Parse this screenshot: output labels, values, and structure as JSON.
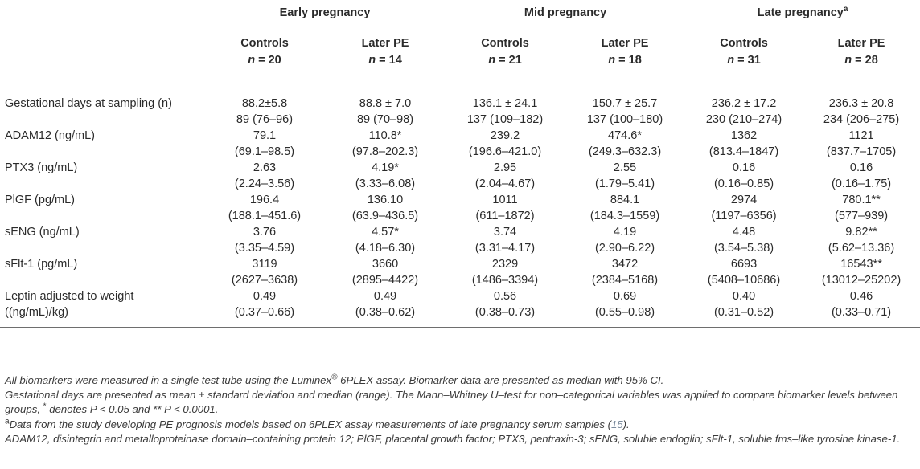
{
  "groups": [
    {
      "label": "Early pregnancy",
      "sup": ""
    },
    {
      "label": "Mid pregnancy",
      "sup": ""
    },
    {
      "label": "Late pregnancy",
      "sup": "a"
    }
  ],
  "subheaders": [
    {
      "name": "Controls",
      "n": "= 20"
    },
    {
      "name": "Later PE",
      "n": "= 14"
    },
    {
      "name": "Controls",
      "n": "= 21"
    },
    {
      "name": "Later PE",
      "n": "= 18"
    },
    {
      "name": "Controls",
      "n": "= 31"
    },
    {
      "name": "Later PE",
      "n": "= 28"
    }
  ],
  "n_symbol": "n",
  "rows": [
    {
      "label": "Gestational days at sampling (n)",
      "cells": [
        [
          "88.2±5.8",
          "89 (76–96)"
        ],
        [
          "88.8 ± 7.0",
          "89 (70–98)"
        ],
        [
          "136.1 ± 24.1",
          "137 (109–182)"
        ],
        [
          "150.7 ± 25.7",
          "137 (100–180)"
        ],
        [
          "236.2 ± 17.2",
          "230 (210–274)"
        ],
        [
          "236.3 ± 20.8",
          "234 (206–275)"
        ]
      ]
    },
    {
      "label": "ADAM12 (ng/mL)",
      "cells": [
        [
          "79.1",
          "(69.1–98.5)"
        ],
        [
          "110.8*",
          "(97.8–202.3)"
        ],
        [
          "239.2",
          "(196.6–421.0)"
        ],
        [
          "474.6*",
          "(249.3–632.3)"
        ],
        [
          "1362",
          "(813.4–1847)"
        ],
        [
          "1121",
          "(837.7–1705)"
        ]
      ]
    },
    {
      "label": "PTX3 (ng/mL)",
      "cells": [
        [
          "2.63",
          "(2.24–3.56)"
        ],
        [
          "4.19*",
          "(3.33–6.08)"
        ],
        [
          "2.95",
          "(2.04–4.67)"
        ],
        [
          "2.55",
          "(1.79–5.41)"
        ],
        [
          "0.16",
          "(0.16–0.85)"
        ],
        [
          "0.16",
          "(0.16–1.75)"
        ]
      ]
    },
    {
      "label": "PlGF (pg/mL)",
      "cells": [
        [
          "196.4",
          "(188.1–451.6)"
        ],
        [
          "136.10",
          "(63.9–436.5)"
        ],
        [
          "1011",
          "(611–1872)"
        ],
        [
          "884.1",
          "(184.3–1559)"
        ],
        [
          "2974",
          "(1197–6356)"
        ],
        [
          "780.1**",
          "(577–939)"
        ]
      ]
    },
    {
      "label": "sENG (ng/mL)",
      "cells": [
        [
          "3.76",
          "(3.35–4.59)"
        ],
        [
          "4.57*",
          "(4.18–6.30)"
        ],
        [
          "3.74",
          "(3.31–4.17)"
        ],
        [
          "4.19",
          "(2.90–6.22)"
        ],
        [
          "4.48",
          "(3.54–5.38)"
        ],
        [
          "9.82**",
          "(5.62–13.36)"
        ]
      ]
    },
    {
      "label": "sFlt-1 (pg/mL)",
      "cells": [
        [
          "3119",
          "(2627–3638)"
        ],
        [
          "3660",
          "(2895–4422)"
        ],
        [
          "2329",
          "(1486–3394)"
        ],
        [
          "3472",
          "(2384–5168)"
        ],
        [
          "6693",
          "(5408–10686)"
        ],
        [
          "16543**",
          "(13012–25202)"
        ]
      ]
    },
    {
      "label": "Leptin adjusted to weight",
      "label2": "((ng/mL)/kg)",
      "cells": [
        [
          "0.49",
          "(0.37–0.66)"
        ],
        [
          "0.49",
          "(0.38–0.62)"
        ],
        [
          "0.56",
          "(0.38–0.73)"
        ],
        [
          "0.69",
          "(0.55–0.98)"
        ],
        [
          "0.40",
          "(0.31–0.52)"
        ],
        [
          "0.46",
          "(0.33–0.71)"
        ]
      ]
    }
  ],
  "notes": {
    "line1_a": "All biomarkers were measured in a single test tube using the Luminex",
    "line1_reg": "®",
    "line1_b": " 6PLEX assay. Biomarker data are presented as median with 95% CI.",
    "line2_a": "Gestational days are presented as mean ± standard deviation and median (range). The Mann–Whitney U–test for non–categorical variables was applied to compare biomarker levels between groups, ",
    "line2_star": "*",
    "line2_b": " denotes P < 0.05 and ** P < 0.0001.",
    "line3_sup": "a",
    "line3_a": "Data from the study developing PE prognosis models based on 6PLEX assay measurements of late pregnancy serum samples (",
    "line3_ref": "15",
    "line3_b": ").",
    "line4": "ADAM12, disintegrin and metalloproteinase domain–containing protein 12; PlGF, placental growth factor; PTX3, pentraxin-3; sENG, soluble endoglin; sFlt-1, soluble fms–like tyrosine kinase-1."
  },
  "colors": {
    "text": "#2b2b2b",
    "rule": "#6e6e6e",
    "ref_link": "#7a8a9c"
  }
}
